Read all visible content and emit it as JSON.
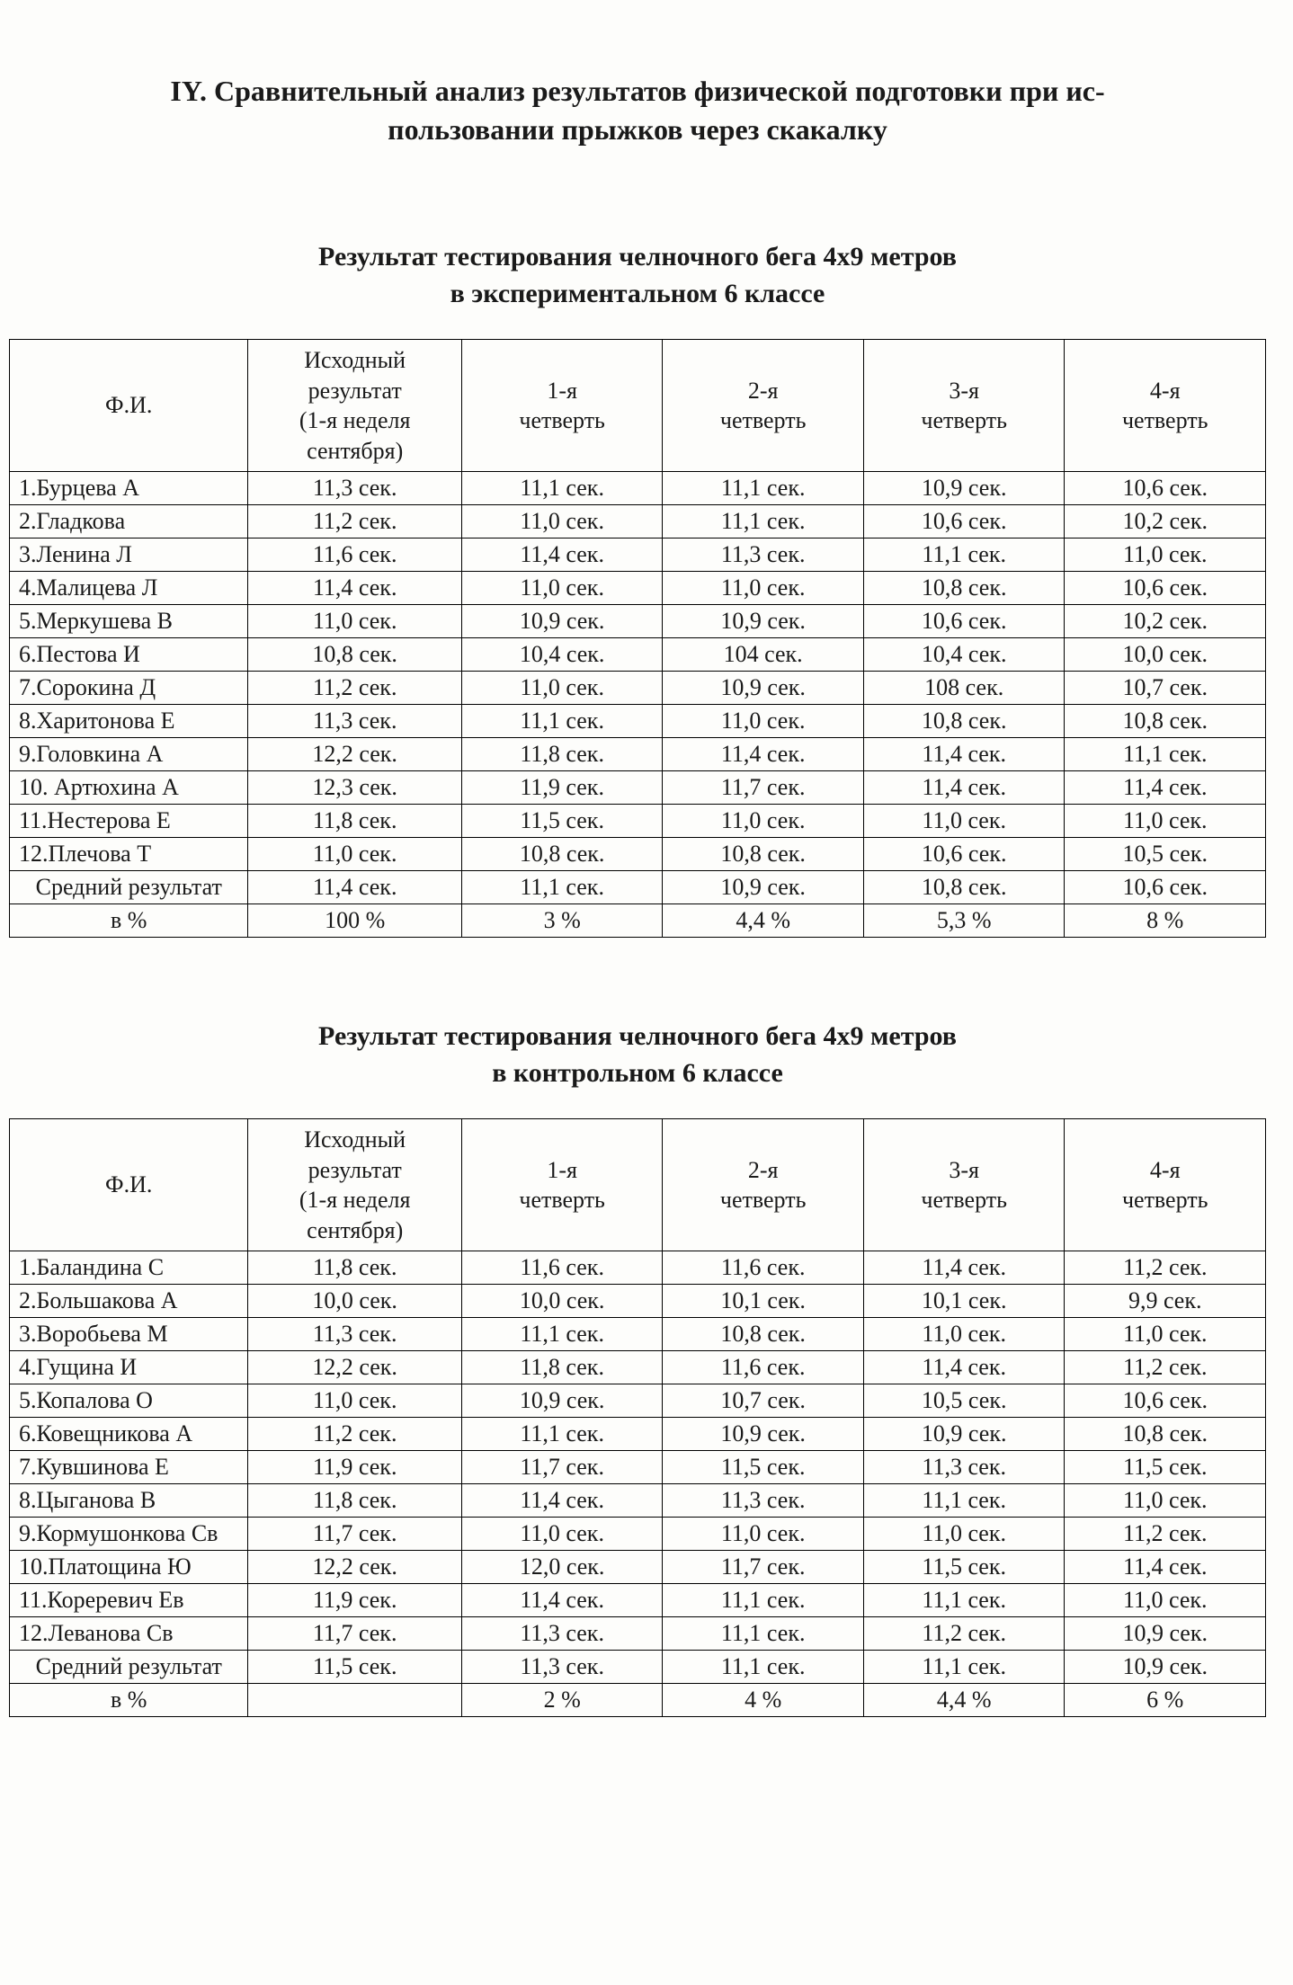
{
  "titles": {
    "main_line1": "IY. Сравнительный анализ результатов физической подготовки при ис-",
    "main_line2": "пользовании прыжков через скакалку",
    "t1_line1": "Результат тестирования челночного бега 4х9 метров",
    "t1_line2": "в экспериментальном 6 классе",
    "t2_line1": "Результат тестирования челночного бега 4х9 метров",
    "t2_line2": "в контрольном 6 классе"
  },
  "columns": {
    "name": "Ф.И.",
    "initial_line1": "Исходный",
    "initial_line2": "результат",
    "initial_line3": "(1-я неделя",
    "initial_line4": "сентября)",
    "q1_line1": "1-я",
    "q1_line2": "четверть",
    "q2_line1": "2-я",
    "q2_line2": "четверть",
    "q3_line1": "3-я",
    "q3_line2": "четверть",
    "q4_line1": "4-я",
    "q4_line2": "четверть"
  },
  "labels": {
    "average": "Средний результат",
    "percent": "в %"
  },
  "table1": {
    "rows": [
      {
        "n": "1.Бурцева А",
        "v": [
          "11,3 сек.",
          "11,1 сек.",
          "11,1 сек.",
          "10,9 сек.",
          "10,6 сек."
        ]
      },
      {
        "n": "2.Гладкова",
        "v": [
          "11,2 сек.",
          "11,0 сек.",
          "11,1 сек.",
          "10,6 сек.",
          "10,2 сек."
        ]
      },
      {
        "n": "3.Ленина Л",
        "v": [
          "11,6 сек.",
          "11,4 сек.",
          "11,3 сек.",
          "11,1 сек.",
          "11,0 сек."
        ]
      },
      {
        "n": "4.Малицева Л",
        "v": [
          "11,4 сек.",
          "11,0 сек.",
          "11,0 сек.",
          "10,8 сек.",
          "10,6 сек."
        ]
      },
      {
        "n": "5.Меркушева В",
        "v": [
          "11,0 сек.",
          "10,9 сек.",
          "10,9 сек.",
          "10,6 сек.",
          "10,2 сек."
        ]
      },
      {
        "n": "6.Пестова И",
        "v": [
          "10,8 сек.",
          "10,4 сек.",
          "104 сек.",
          "10,4 сек.",
          "10,0 сек."
        ]
      },
      {
        "n": "7.Сорокина Д",
        "v": [
          "11,2 сек.",
          "11,0 сек.",
          "10,9 сек.",
          "108 сек.",
          "10,7 сек."
        ]
      },
      {
        "n": "8.Харитонова Е",
        "v": [
          "11,3 сек.",
          "11,1 сек.",
          "11,0 сек.",
          "10,8 сек.",
          "10,8 сек."
        ]
      },
      {
        "n": "9.Головкина А",
        "v": [
          "12,2 сек.",
          "11,8 сек.",
          "11,4 сек.",
          "11,4 сек.",
          "11,1 сек."
        ]
      },
      {
        "n": "10. Артюхина А",
        "v": [
          "12,3 сек.",
          "11,9 сек.",
          "11,7 сек.",
          "11,4 сек.",
          "11,4 сек."
        ]
      },
      {
        "n": "11.Нестерова Е",
        "v": [
          "11,8 сек.",
          "11,5 сек.",
          "11,0 сек.",
          "11,0 сек.",
          "11,0 сек."
        ]
      },
      {
        "n": "12.Плечова Т",
        "v": [
          "11,0 сек.",
          "10,8 сек.",
          "10,8 сек.",
          "10,6 сек.",
          "10,5 сек."
        ]
      }
    ],
    "average": [
      "11,4 сек.",
      "11,1 сек.",
      "10,9 сек.",
      "10,8 сек.",
      "10,6 сек."
    ],
    "percent": [
      "100 %",
      "3 %",
      "4,4 %",
      "5,3 %",
      "8 %"
    ]
  },
  "table2": {
    "rows": [
      {
        "n": "1.Баландина С",
        "v": [
          "11,8 сек.",
          "11,6 сек.",
          "11,6 сек.",
          "11,4 сек.",
          "11,2 сек."
        ]
      },
      {
        "n": "2.Большакова А",
        "v": [
          "10,0 сек.",
          "10,0 сек.",
          "10,1 сек.",
          "10,1 сек.",
          "9,9 сек."
        ]
      },
      {
        "n": "3.Воробьева М",
        "v": [
          "11,3 сек.",
          "11,1 сек.",
          "10,8 сек.",
          "11,0 сек.",
          "11,0 сек."
        ]
      },
      {
        "n": "4.Гущина И",
        "v": [
          "12,2 сек.",
          "11,8 сек.",
          "11,6 сек.",
          "11,4 сек.",
          "11,2 сек."
        ]
      },
      {
        "n": "5.Копалова О",
        "v": [
          "11,0 сек.",
          "10,9 сек.",
          "10,7 сек.",
          "10,5 сек.",
          "10,6 сек."
        ]
      },
      {
        "n": "6.Ковещникова А",
        "v": [
          "11,2 сек.",
          "11,1 сек.",
          "10,9 сек.",
          "10,9 сек.",
          "10,8 сек."
        ]
      },
      {
        "n": "7.Кувшинова Е",
        "v": [
          "11,9 сек.",
          "11,7 сек.",
          "11,5 сек.",
          "11,3 сек.",
          "11,5 сек."
        ]
      },
      {
        "n": "8.Цыганова В",
        "v": [
          "11,8 сек.",
          "11,4 сек.",
          "11,3 сек.",
          "11,1 сек.",
          "11,0 сек."
        ]
      },
      {
        "n": "9.Кормушонкова Св",
        "v": [
          "11,7 сек.",
          "11,0 сек.",
          "11,0 сек.",
          "11,0 сек.",
          "11,2 сек."
        ]
      },
      {
        "n": "10.Платощина Ю",
        "v": [
          "12,2 сек.",
          "12,0 сек.",
          "11,7 сек.",
          "11,5 сек.",
          "11,4 сек."
        ]
      },
      {
        "n": "11.Кореревич Ев",
        "v": [
          "11,9 сек.",
          "11,4 сек.",
          "11,1 сек.",
          "11,1 сек.",
          "11,0 сек."
        ]
      },
      {
        "n": "12.Леванова Св",
        "v": [
          "11,7 сек.",
          "11,3 сек.",
          "11,1 сек.",
          "11,2 сек.",
          "10,9 сек."
        ]
      }
    ],
    "average": [
      "11,5 сек.",
      "11,3 сек.",
      "11,1 сек.",
      "11,1 сек.",
      "10,9 сек."
    ],
    "percent": [
      "",
      "2 %",
      "4 %",
      "4,4 %",
      "6 %"
    ]
  }
}
